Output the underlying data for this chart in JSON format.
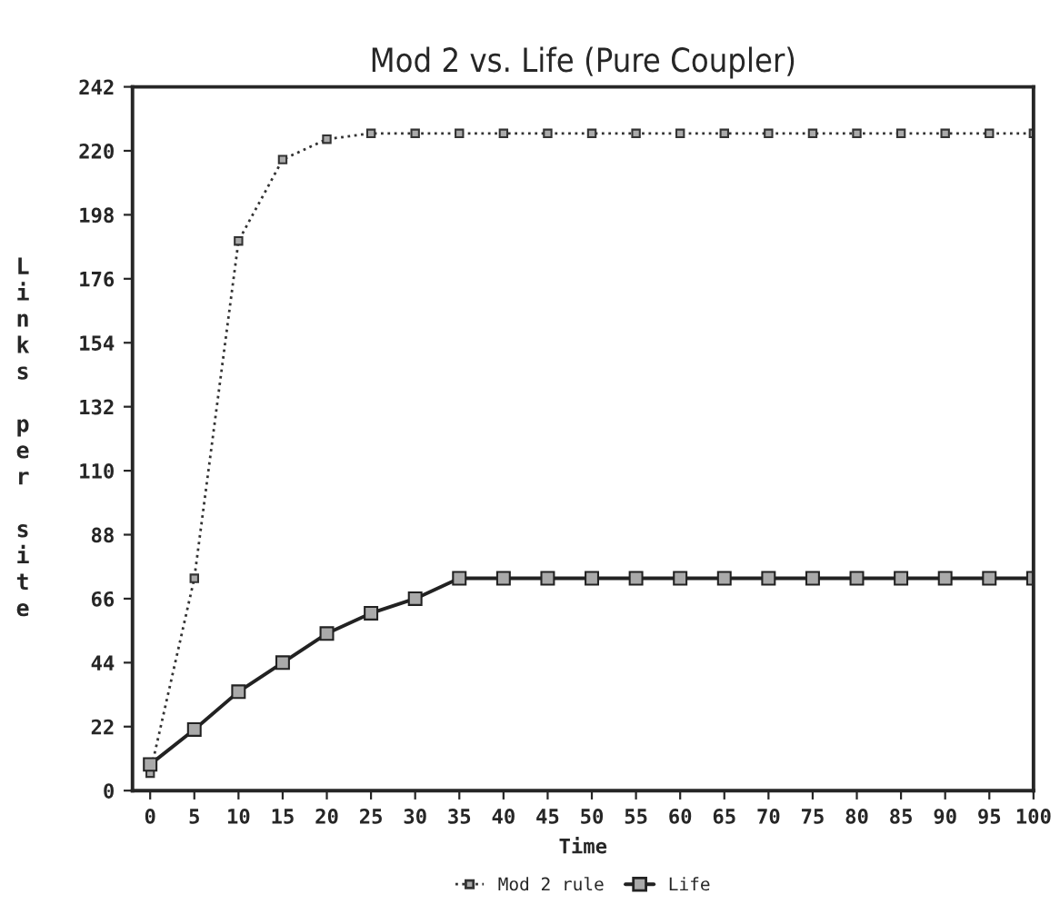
{
  "chart_data": {
    "type": "line",
    "title": "Mod 2 vs. Life (Pure Coupler)",
    "xlabel": "Time",
    "ylabel": "Links per site",
    "x": [
      0,
      5,
      10,
      15,
      20,
      25,
      30,
      35,
      40,
      45,
      50,
      55,
      60,
      65,
      70,
      75,
      80,
      85,
      90,
      95,
      100
    ],
    "series": [
      {
        "name": "Mod 2 rule",
        "color": "#333333",
        "line_style": "dotted",
        "marker": "square",
        "values": [
          6,
          73,
          189,
          217,
          224,
          226,
          226,
          226,
          226,
          226,
          226,
          226,
          226,
          226,
          226,
          226,
          226,
          226,
          226,
          226,
          226
        ]
      },
      {
        "name": "Life",
        "color": "#222222",
        "line_style": "solid",
        "marker": "square",
        "values": [
          9,
          21,
          34,
          44,
          54,
          61,
          66,
          73,
          73,
          73,
          73,
          73,
          73,
          73,
          73,
          73,
          73,
          73,
          73,
          73,
          73
        ]
      }
    ],
    "xlim": [
      -2,
      100
    ],
    "xticks": [
      0,
      5,
      10,
      15,
      20,
      25,
      30,
      35,
      40,
      45,
      50,
      55,
      60,
      65,
      70,
      75,
      80,
      85,
      90,
      95,
      100
    ],
    "ylim": [
      0,
      242
    ],
    "yticks": [
      0,
      22,
      44,
      66,
      88,
      110,
      132,
      154,
      176,
      198,
      220,
      242
    ],
    "grid": false,
    "legend": "bottom"
  }
}
